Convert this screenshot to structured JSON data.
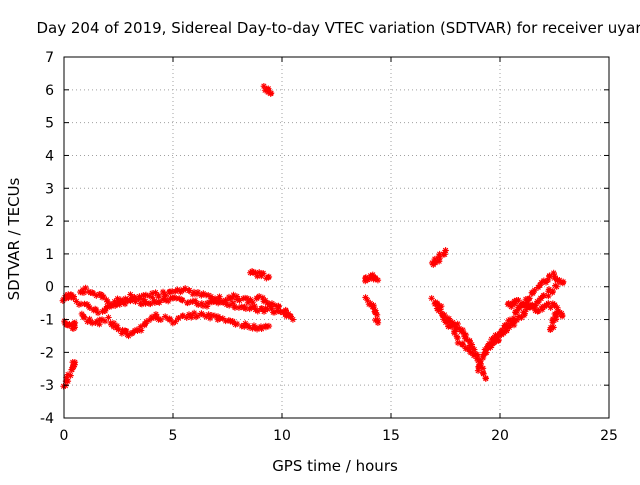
{
  "chart_data": {
    "type": "scatter",
    "title": "Day 204 of 2019, Sidereal Day-to-day VTEC variation (SDTVAR) for receiver uyar",
    "xlabel": "GPS time / hours",
    "ylabel": "SDTVAR / TECUs",
    "xlim": [
      0,
      25
    ],
    "ylim": [
      -4,
      7
    ],
    "xticks": [
      "0",
      "5",
      "10",
      "15",
      "20",
      "25"
    ],
    "yticks": [
      "7",
      "6",
      "5",
      "4",
      "3",
      "2",
      "1",
      "0",
      "-1",
      "-2",
      "-3",
      "-4"
    ],
    "grid": true,
    "marker": "cross",
    "series": [
      {
        "name": "SDTVAR",
        "color": "#ff0000",
        "segments": [
          [
            [
              0.0,
              -3.0
            ],
            [
              0.15,
              -2.8
            ],
            [
              0.3,
              -2.6
            ],
            [
              0.45,
              -2.4
            ],
            [
              0.5,
              -2.3
            ]
          ],
          [
            [
              0.0,
              -0.4
            ],
            [
              0.15,
              -0.3
            ],
            [
              0.3,
              -0.25
            ],
            [
              0.45,
              -0.3
            ]
          ],
          [
            [
              0.0,
              -1.1
            ],
            [
              0.2,
              -1.2
            ],
            [
              0.4,
              -1.25
            ],
            [
              0.5,
              -1.1
            ]
          ],
          [
            [
              0.7,
              -0.2
            ],
            [
              1.0,
              -0.1
            ],
            [
              1.4,
              -0.2
            ],
            [
              1.8,
              -0.35
            ],
            [
              2.2,
              -0.5
            ],
            [
              2.6,
              -0.4
            ],
            [
              3.0,
              -0.3
            ],
            [
              3.4,
              -0.35
            ],
            [
              3.8,
              -0.3
            ],
            [
              4.2,
              -0.25
            ],
            [
              4.6,
              -0.2
            ],
            [
              5.0,
              -0.15
            ],
            [
              5.4,
              -0.1
            ],
            [
              5.8,
              -0.15
            ],
            [
              6.2,
              -0.2
            ],
            [
              6.6,
              -0.3
            ],
            [
              7.0,
              -0.35
            ],
            [
              7.4,
              -0.4
            ],
            [
              7.8,
              -0.3
            ],
            [
              8.2,
              -0.4
            ],
            [
              8.6,
              -0.45
            ],
            [
              9.0,
              -0.35
            ],
            [
              9.4,
              -0.5
            ],
            [
              9.8,
              -0.6
            ],
            [
              10.2,
              -0.8
            ],
            [
              10.5,
              -1.0
            ]
          ],
          [
            [
              0.6,
              -0.5
            ],
            [
              1.0,
              -0.6
            ],
            [
              1.4,
              -0.7
            ],
            [
              1.8,
              -0.75
            ],
            [
              2.2,
              -0.6
            ],
            [
              2.6,
              -0.5
            ],
            [
              3.0,
              -0.4
            ],
            [
              3.4,
              -0.45
            ],
            [
              3.8,
              -0.5
            ],
            [
              4.2,
              -0.45
            ],
            [
              4.6,
              -0.4
            ],
            [
              5.0,
              -0.35
            ],
            [
              5.4,
              -0.4
            ],
            [
              5.8,
              -0.45
            ],
            [
              6.2,
              -0.5
            ],
            [
              6.6,
              -0.55
            ],
            [
              7.0,
              -0.5
            ],
            [
              7.4,
              -0.45
            ],
            [
              7.8,
              -0.55
            ],
            [
              8.2,
              -0.6
            ],
            [
              8.6,
              -0.6
            ],
            [
              9.0,
              -0.7
            ],
            [
              9.4,
              -0.7
            ],
            [
              9.8,
              -0.8
            ],
            [
              10.2,
              -0.9
            ]
          ],
          [
            [
              0.8,
              -0.9
            ],
            [
              1.2,
              -1.1
            ],
            [
              1.6,
              -1.1
            ],
            [
              2.0,
              -1.0
            ],
            [
              2.4,
              -1.2
            ],
            [
              2.8,
              -1.4
            ],
            [
              3.1,
              -1.45
            ],
            [
              3.4,
              -1.3
            ],
            [
              3.8,
              -1.1
            ],
            [
              4.2,
              -0.9
            ],
            [
              4.6,
              -0.95
            ],
            [
              5.0,
              -1.05
            ],
            [
              5.4,
              -0.95
            ],
            [
              5.8,
              -0.9
            ],
            [
              6.2,
              -0.85
            ],
            [
              6.6,
              -0.9
            ],
            [
              7.0,
              -0.95
            ],
            [
              7.4,
              -1.05
            ],
            [
              7.8,
              -1.1
            ],
            [
              8.2,
              -1.15
            ],
            [
              8.6,
              -1.2
            ],
            [
              9.0,
              -1.25
            ],
            [
              9.4,
              -1.2
            ]
          ],
          [
            [
              8.5,
              0.45
            ],
            [
              8.8,
              0.4
            ],
            [
              9.1,
              0.35
            ],
            [
              9.4,
              0.3
            ]
          ],
          [
            [
              9.2,
              6.1
            ],
            [
              9.35,
              6.0
            ],
            [
              9.5,
              5.9
            ]
          ],
          [
            [
              13.8,
              0.2
            ],
            [
              14.0,
              0.25
            ],
            [
              14.2,
              0.3
            ],
            [
              14.4,
              0.2
            ]
          ],
          [
            [
              13.9,
              -0.4
            ],
            [
              14.1,
              -0.55
            ],
            [
              14.25,
              -0.8
            ],
            [
              14.4,
              -1.1
            ]
          ],
          [
            [
              16.9,
              0.7
            ],
            [
              17.1,
              0.8
            ],
            [
              17.3,
              1.0
            ],
            [
              17.5,
              1.1
            ]
          ],
          [
            [
              16.9,
              -0.4
            ],
            [
              17.2,
              -0.6
            ],
            [
              17.5,
              -0.9
            ],
            [
              17.8,
              -1.1
            ],
            [
              18.0,
              -1.2
            ],
            [
              18.2,
              -1.35
            ],
            [
              18.4,
              -1.5
            ],
            [
              18.6,
              -1.7
            ],
            [
              18.8,
              -2.0
            ],
            [
              19.0,
              -2.3
            ],
            [
              19.2,
              -2.6
            ],
            [
              19.35,
              -2.8
            ]
          ],
          [
            [
              17.0,
              -0.5
            ],
            [
              17.3,
              -0.8
            ],
            [
              17.6,
              -1.1
            ],
            [
              17.9,
              -1.4
            ],
            [
              18.2,
              -1.7
            ],
            [
              18.5,
              -1.9
            ],
            [
              18.8,
              -2.1
            ]
          ],
          [
            [
              19.0,
              -2.5
            ],
            [
              19.2,
              -2.2
            ],
            [
              19.4,
              -1.9
            ],
            [
              19.6,
              -1.7
            ],
            [
              19.8,
              -1.5
            ],
            [
              20.0,
              -1.4
            ],
            [
              20.2,
              -1.2
            ],
            [
              20.4,
              -1.1
            ],
            [
              20.6,
              -0.9
            ],
            [
              20.8,
              -0.7
            ],
            [
              21.0,
              -0.6
            ],
            [
              21.2,
              -0.4
            ],
            [
              21.5,
              -0.2
            ],
            [
              21.8,
              0.0
            ],
            [
              22.1,
              0.2
            ],
            [
              22.4,
              0.4
            ],
            [
              22.7,
              0.2
            ],
            [
              22.9,
              0.15
            ]
          ],
          [
            [
              19.3,
              -2.0
            ],
            [
              19.6,
              -1.8
            ],
            [
              19.9,
              -1.6
            ],
            [
              20.2,
              -1.4
            ],
            [
              20.5,
              -1.2
            ],
            [
              20.8,
              -1.0
            ],
            [
              21.1,
              -0.8
            ],
            [
              21.4,
              -0.6
            ],
            [
              21.7,
              -0.5
            ],
            [
              22.0,
              -0.3
            ],
            [
              22.3,
              -0.15
            ],
            [
              22.6,
              0.0
            ]
          ],
          [
            [
              20.3,
              -0.6
            ],
            [
              20.6,
              -0.5
            ],
            [
              20.9,
              -0.45
            ],
            [
              21.2,
              -0.55
            ],
            [
              21.5,
              -0.65
            ],
            [
              21.8,
              -0.7
            ],
            [
              22.1,
              -0.6
            ],
            [
              22.4,
              -0.55
            ],
            [
              22.7,
              -0.7
            ],
            [
              22.85,
              -0.9
            ]
          ],
          [
            [
              22.3,
              -1.3
            ],
            [
              22.4,
              -1.2
            ],
            [
              22.5,
              -1.0
            ],
            [
              22.6,
              -0.8
            ]
          ]
        ]
      }
    ]
  }
}
